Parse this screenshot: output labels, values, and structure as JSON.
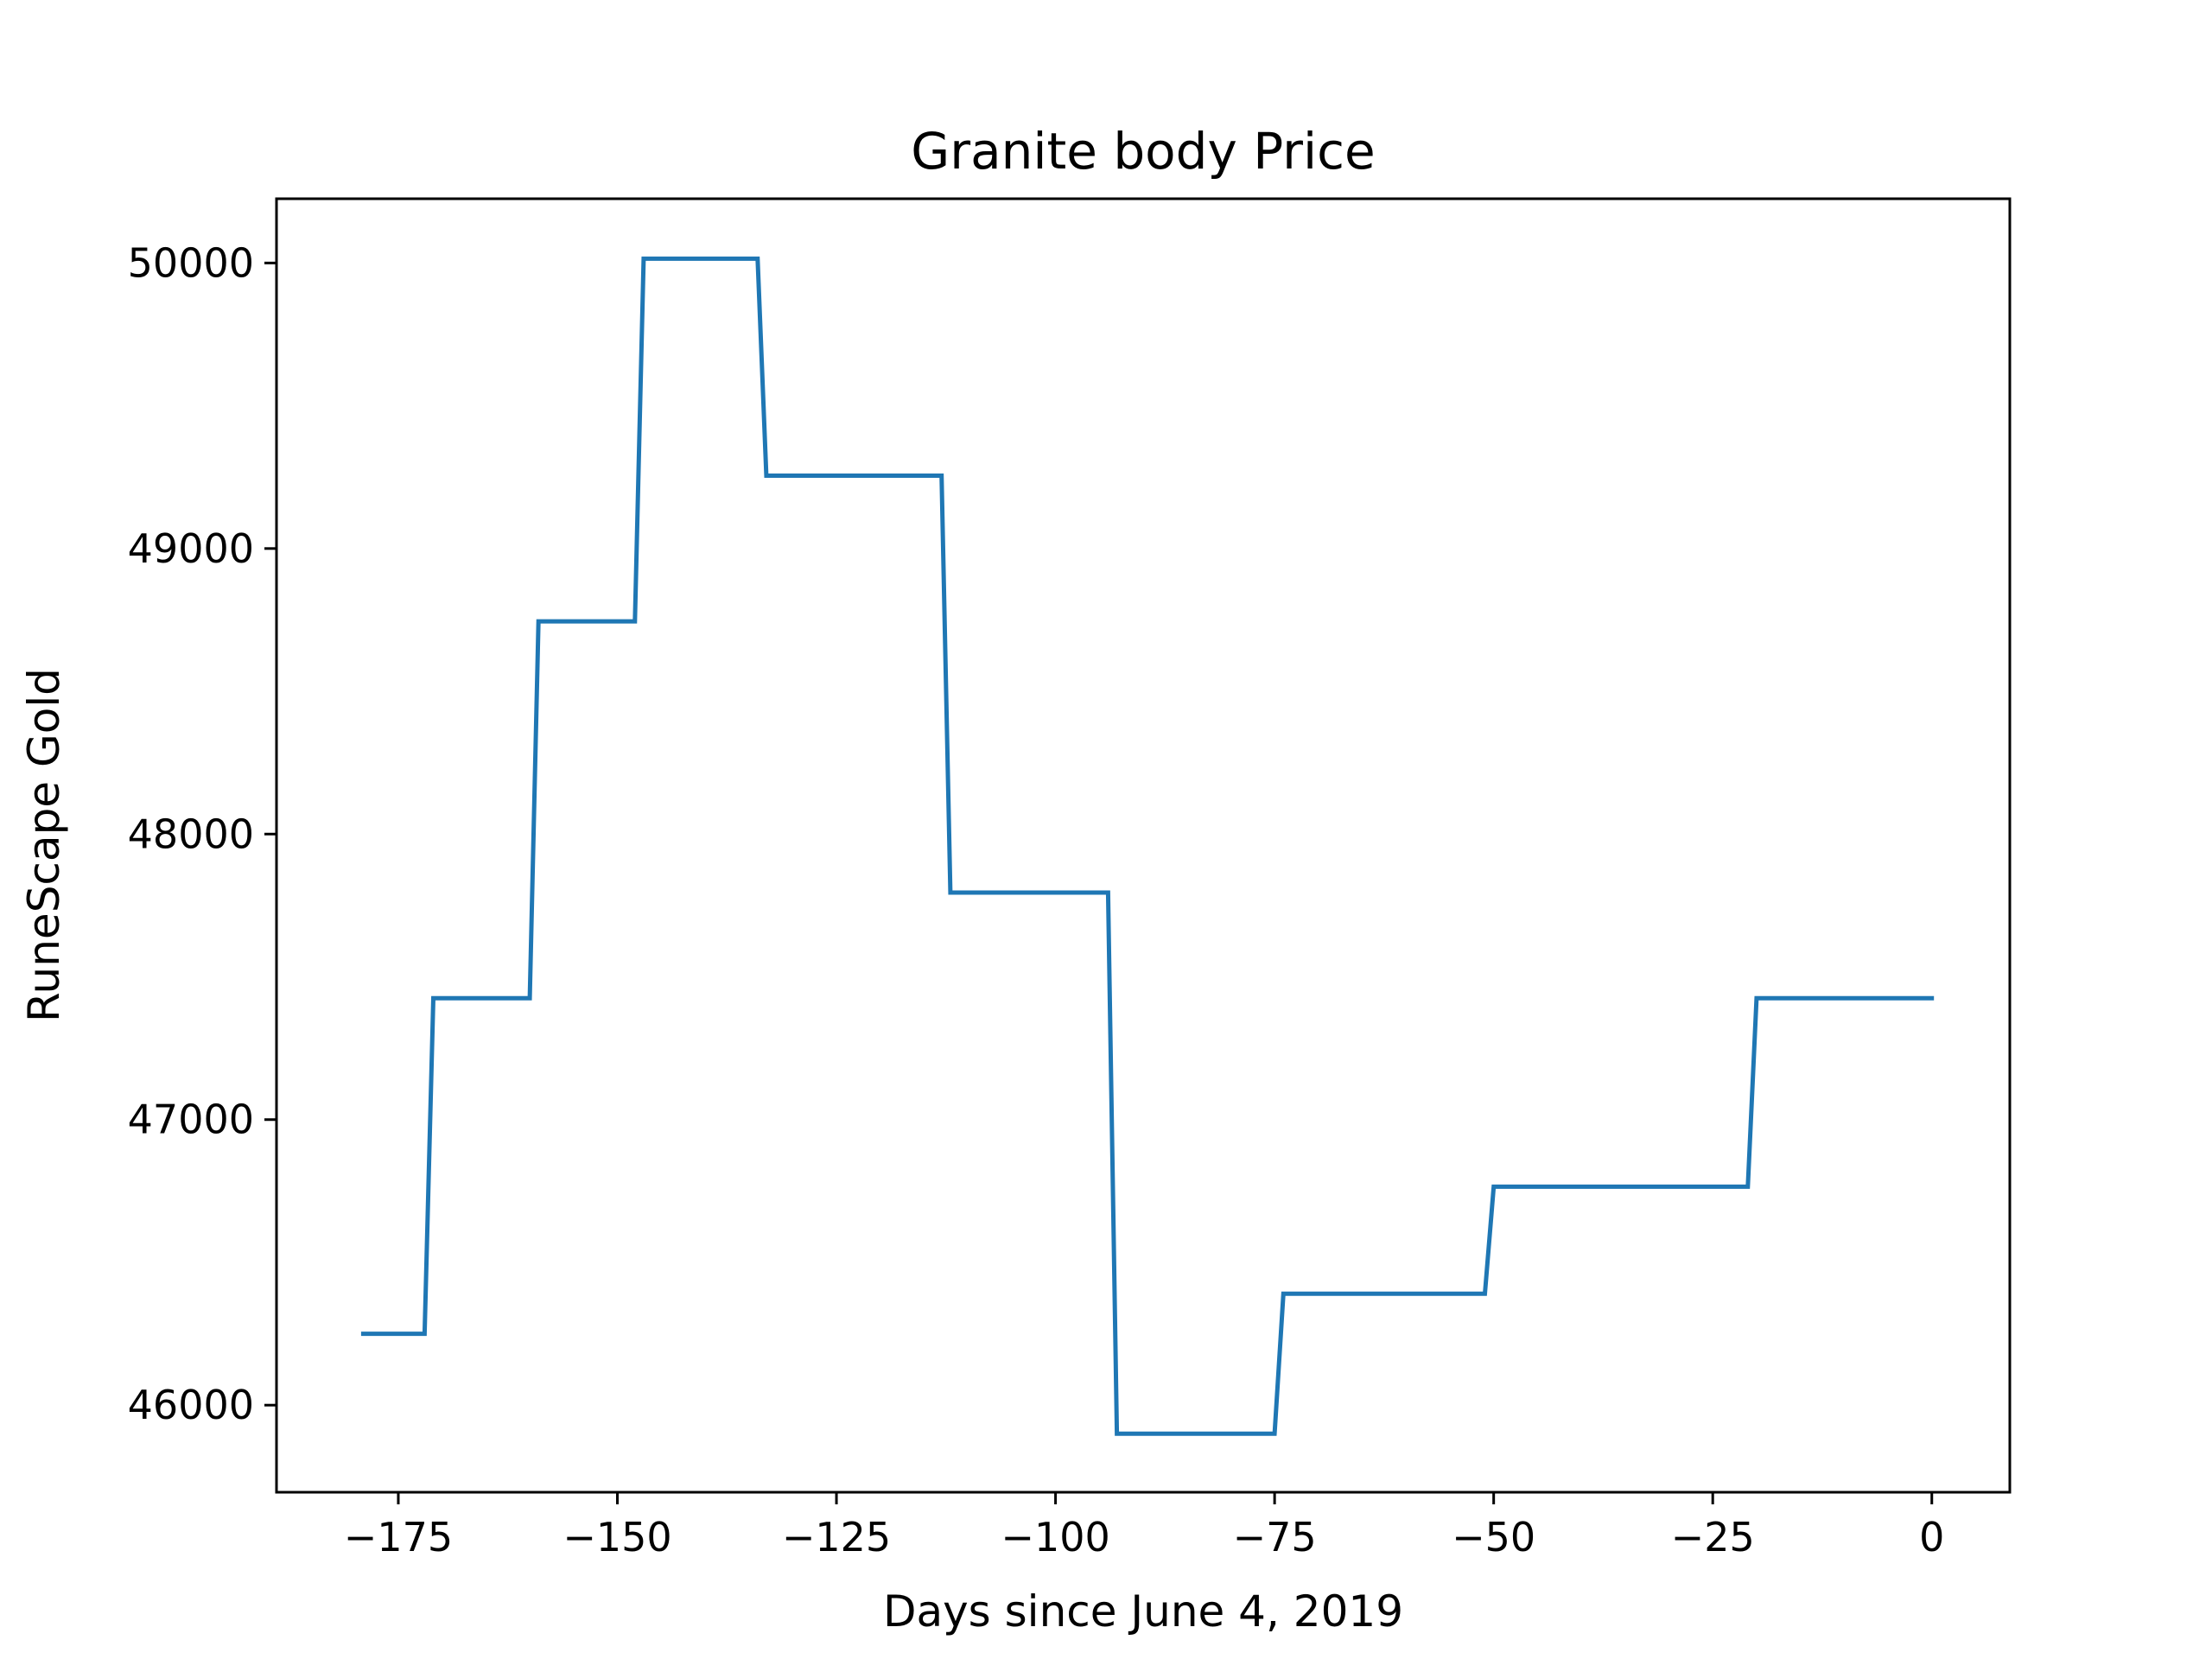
{
  "chart_data": {
    "type": "line",
    "title": "Granite body Price",
    "xlabel": "Days since June 4, 2019",
    "ylabel": "RuneScape Gold",
    "xlim": [
      -188.9,
      8.9
    ],
    "ylim": [
      45695,
      50225
    ],
    "xticks": [
      -175,
      -150,
      -125,
      -100,
      -75,
      -50,
      -25,
      0
    ],
    "xtick_labels": [
      "−175",
      "−150",
      "−125",
      "−100",
      "−75",
      "−50",
      "−25",
      "0"
    ],
    "yticks": [
      46000,
      47000,
      48000,
      49000,
      50000
    ],
    "ytick_labels": [
      "46000",
      "47000",
      "48000",
      "49000",
      "50000"
    ],
    "grid": false,
    "legend": "none",
    "series": [
      {
        "color": "#1f77b4",
        "x": [
          -179,
          -172,
          -171,
          -160,
          -159,
          -148,
          -147,
          -134,
          -133,
          -113,
          -112,
          -94,
          -93,
          -75,
          -74,
          -51,
          -50,
          -21,
          -20,
          0
        ],
        "y": [
          46250,
          46250,
          47425,
          47425,
          48745,
          48745,
          50015,
          50015,
          49255,
          49255,
          47795,
          47795,
          45900,
          45900,
          46390,
          46390,
          46765,
          46765,
          47425,
          47425
        ]
      }
    ]
  }
}
